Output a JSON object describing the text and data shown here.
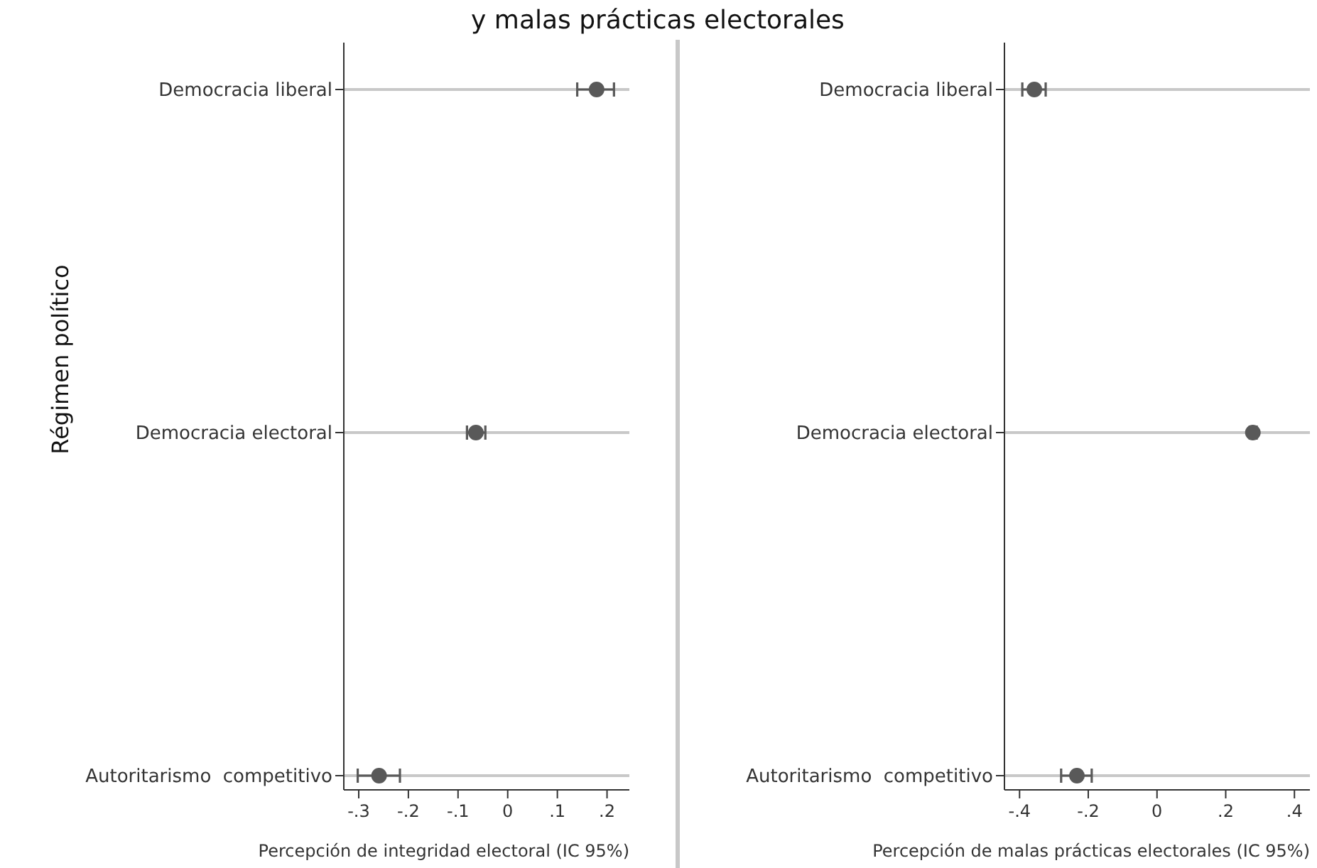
{
  "chart_data": [
    {
      "type": "scatter",
      "orientation": "horizontal",
      "title": "y malas prácticas electorales",
      "ylabel": "Régimen político",
      "xlabel": "Percepción de integridad electoral (IC 95%)",
      "categories": [
        "Democracia liberal",
        "Democracia electoral",
        "Autoritarismo  competitivo"
      ],
      "xlim": [
        -0.33,
        0.245
      ],
      "xticks": [
        {
          "value": -0.3,
          "label": "-.3"
        },
        {
          "value": -0.2,
          "label": "-.2"
        },
        {
          "value": -0.1,
          "label": "-.1"
        },
        0,
        {
          "value": 0.1,
          "label": ".1"
        },
        {
          "value": 0.2,
          "label": ".2"
        }
      ],
      "grid": "y",
      "marker": "circle",
      "series": [
        {
          "color": "#595959",
          "values": [
            0.179,
            -0.064,
            -0.259
          ],
          "errors": [
            [
              0.14,
              0.214
            ],
            [
              -0.082,
              -0.045
            ],
            [
              -0.302,
              -0.217
            ]
          ]
        }
      ]
    },
    {
      "type": "scatter",
      "orientation": "horizontal",
      "xlabel": "Percepción de malas prácticas electorales (IC 95%)",
      "categories": [
        "Democracia liberal",
        "Democracia electoral",
        "Autoritarismo  competitivo"
      ],
      "xlim": [
        -0.444,
        0.445
      ],
      "xticks": [
        {
          "value": -0.4,
          "label": "-.4"
        },
        {
          "value": -0.2,
          "label": "-.2"
        },
        0,
        {
          "value": 0.2,
          "label": ".2"
        },
        {
          "value": 0.4,
          "label": ".4"
        }
      ],
      "grid": "y",
      "marker": "circle",
      "series": [
        {
          "color": "#595959",
          "values": [
            -0.357,
            0.279,
            -0.233
          ],
          "errors": [
            [
              -0.392,
              -0.324
            ],
            [
              0.27,
              0.29
            ],
            [
              -0.279,
              -0.19
            ]
          ]
        }
      ]
    }
  ]
}
